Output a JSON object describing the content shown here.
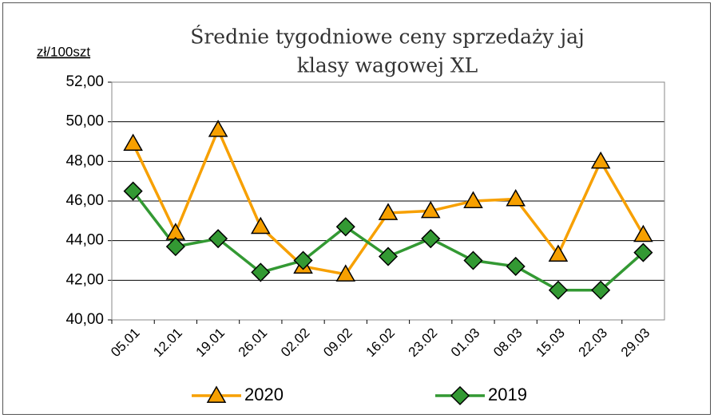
{
  "chart_data": {
    "type": "line",
    "title": [
      "Średnie tygodniowe ceny sprzedaży jaj",
      "klasy wagowej XL"
    ],
    "y_label": "zł/100szt",
    "categories": [
      "05.01",
      "12.01",
      "19.01",
      "26.01",
      "02.02",
      "09.02",
      "16.02",
      "23.02",
      "01.03",
      "08.03",
      "15.03",
      "22.03",
      "29.03"
    ],
    "series": [
      {
        "name": "2020",
        "color": "#f7a000",
        "marker": "triangle",
        "values": [
          48.9,
          44.4,
          49.6,
          44.7,
          42.7,
          42.3,
          45.4,
          45.5,
          46.0,
          46.1,
          43.3,
          48.0,
          44.3
        ]
      },
      {
        "name": "2019",
        "color": "#339933",
        "marker": "diamond",
        "values": [
          46.5,
          43.7,
          44.1,
          42.4,
          43.0,
          44.7,
          43.2,
          44.1,
          43.0,
          42.7,
          41.5,
          41.5,
          43.4
        ]
      }
    ],
    "ylim": [
      40,
      52
    ],
    "yticks": [
      {
        "value": 40,
        "label": "40,00"
      },
      {
        "value": 42,
        "label": "42,00"
      },
      {
        "value": 44,
        "label": "44,00"
      },
      {
        "value": 46,
        "label": "46,00"
      },
      {
        "value": 48,
        "label": "48,00"
      },
      {
        "value": 50,
        "label": "50,00"
      },
      {
        "value": 52,
        "label": "52,00"
      }
    ],
    "grid": true,
    "legend": "bottom"
  }
}
